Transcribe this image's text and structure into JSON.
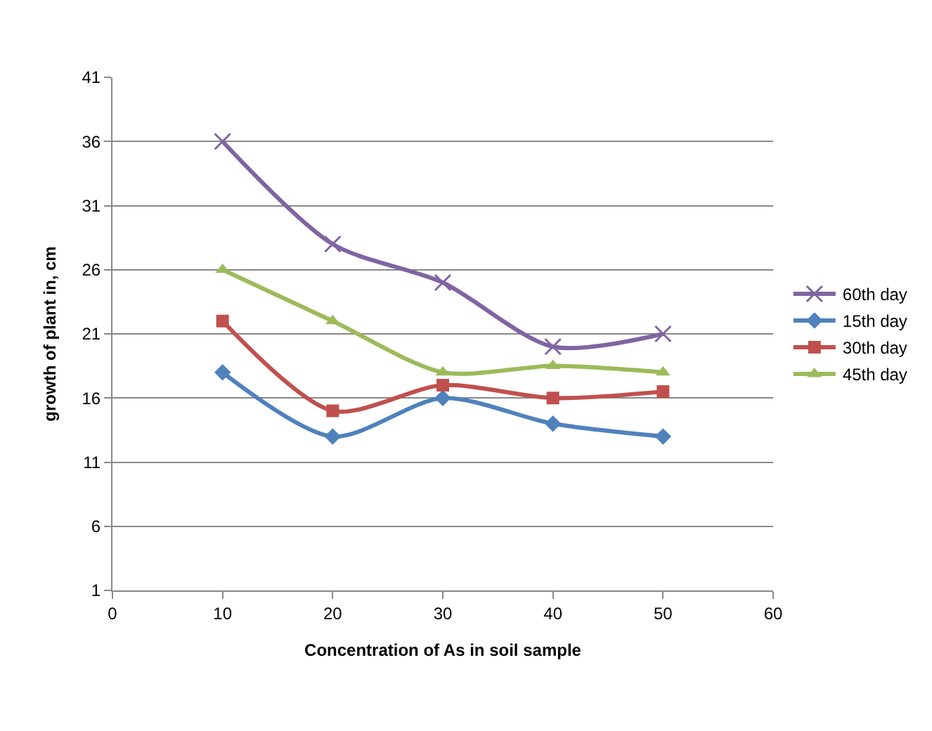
{
  "chart_data": {
    "type": "line",
    "xlabel": "Concentration of As in soil sample",
    "ylabel": "growth of plant in, cm",
    "x": [
      10,
      20,
      30,
      40,
      50
    ],
    "series": [
      {
        "name": "60th day",
        "color": "#8064a2",
        "marker": "cross",
        "values": [
          36,
          28,
          25,
          20,
          21
        ]
      },
      {
        "name": "15th day",
        "color": "#4f81bd",
        "marker": "diamond",
        "values": [
          18,
          13,
          16,
          14,
          13
        ]
      },
      {
        "name": "30th day",
        "color": "#c0504d",
        "marker": "square",
        "values": [
          22,
          15,
          17,
          16,
          16.5
        ]
      },
      {
        "name": "45th day",
        "color": "#9bbb59",
        "marker": "triangle",
        "values": [
          26,
          22,
          18,
          18.5,
          18
        ]
      }
    ],
    "xlim": [
      0,
      60
    ],
    "xticks": [
      0,
      10,
      20,
      30,
      40,
      50,
      60
    ],
    "ylim": [
      1,
      41
    ],
    "yticks": [
      1,
      6,
      11,
      16,
      21,
      26,
      31,
      36,
      41
    ],
    "grid": "y",
    "legend": "right",
    "line_style": "solid"
  }
}
